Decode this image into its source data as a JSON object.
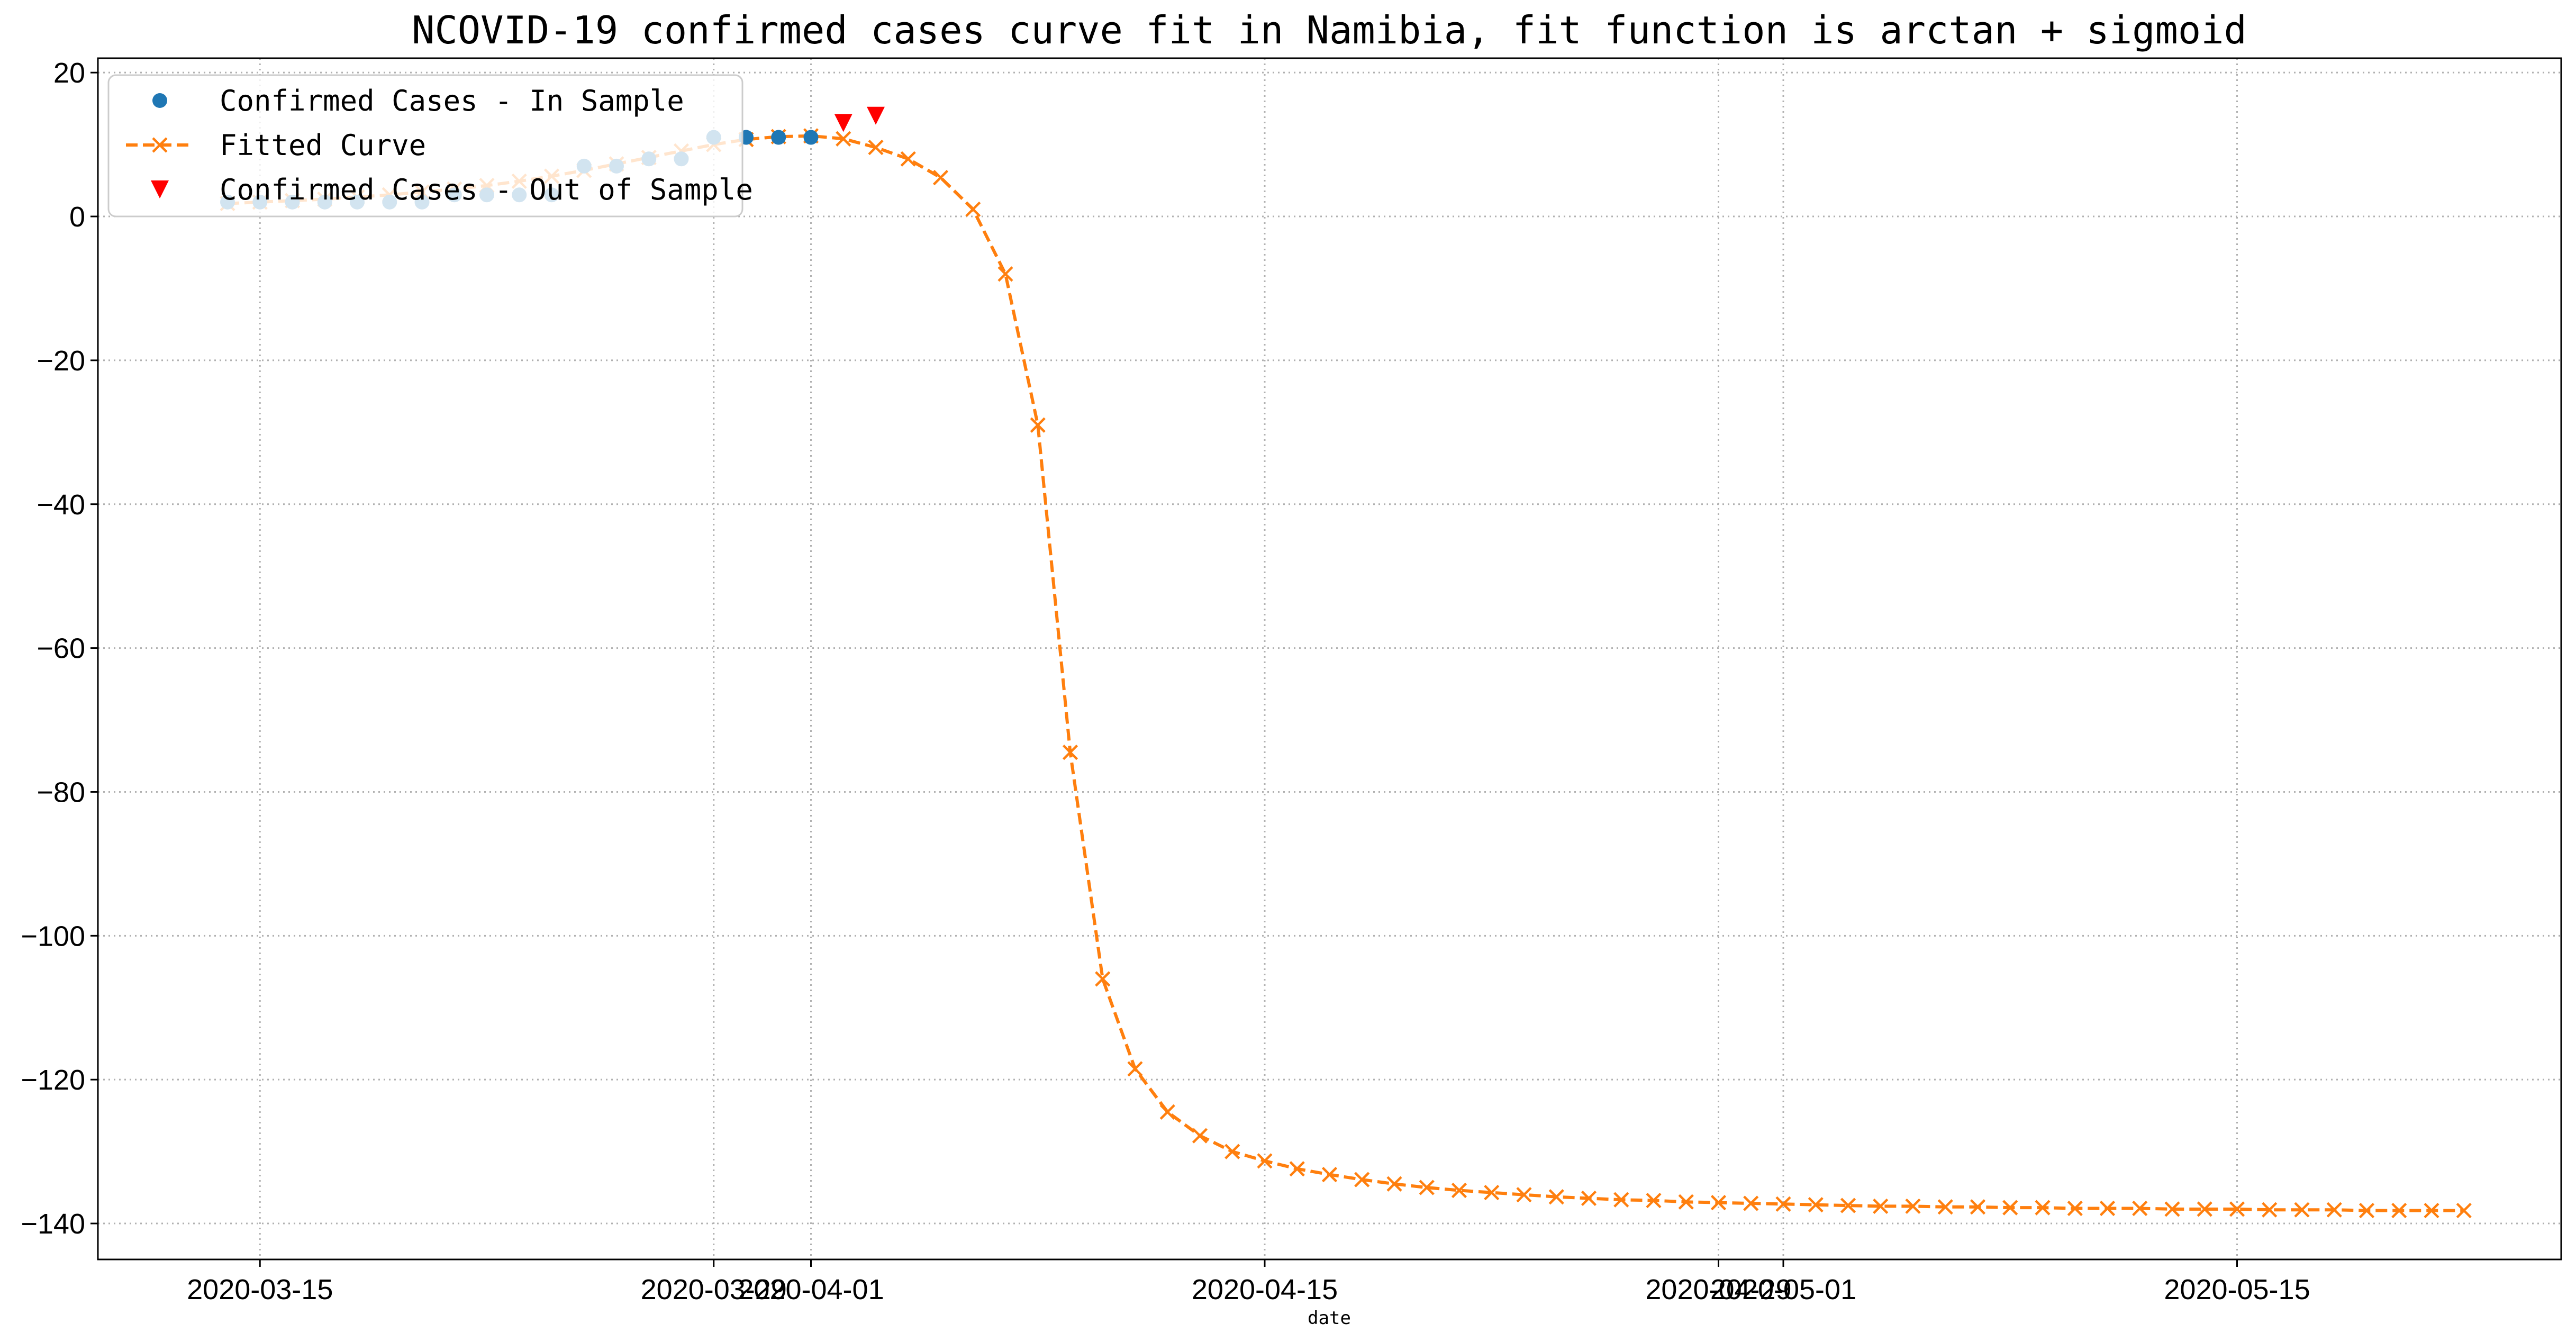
{
  "chart_data": {
    "type": "line",
    "title": "NCOVID-19 confirmed cases curve fit in Namibia, fit function is arctan + sigmoid",
    "xlabel": "date",
    "ylabel": "",
    "ylim": [
      -145,
      22
    ],
    "xlim": [
      "2020-03-10",
      "2020-05-25"
    ],
    "grid": true,
    "legend_position": "top-left",
    "x_ticks": [
      "2020-03-15",
      "2020-03-29",
      "2020-04-01",
      "2020-04-15",
      "2020-04-29",
      "2020-05-01",
      "2020-05-15"
    ],
    "y_ticks": [
      20,
      0,
      -20,
      -40,
      -60,
      -80,
      -100,
      -120,
      -140
    ],
    "series": [
      {
        "name": "Confirmed Cases - In Sample",
        "marker": "circle",
        "color": "#1f77b4",
        "x": [
          "2020-03-14",
          "2020-03-15",
          "2020-03-16",
          "2020-03-17",
          "2020-03-18",
          "2020-03-19",
          "2020-03-20",
          "2020-03-21",
          "2020-03-22",
          "2020-03-23",
          "2020-03-24",
          "2020-03-25",
          "2020-03-26",
          "2020-03-27",
          "2020-03-28",
          "2020-03-29",
          "2020-03-30",
          "2020-03-31",
          "2020-04-01"
        ],
        "y": [
          2,
          2,
          2,
          2,
          2,
          2,
          2,
          3,
          3,
          3,
          3,
          7,
          7,
          8,
          8,
          11,
          11,
          11,
          11
        ]
      },
      {
        "name": "Fitted Curve",
        "marker": "x",
        "line": "dashed",
        "color": "#ff7f0e",
        "x": [
          "2020-03-14",
          "2020-03-15",
          "2020-03-16",
          "2020-03-17",
          "2020-03-18",
          "2020-03-19",
          "2020-03-20",
          "2020-03-21",
          "2020-03-22",
          "2020-03-23",
          "2020-03-24",
          "2020-03-25",
          "2020-03-26",
          "2020-03-27",
          "2020-03-28",
          "2020-03-29",
          "2020-03-30",
          "2020-03-31",
          "2020-04-01",
          "2020-04-02",
          "2020-04-03",
          "2020-04-04",
          "2020-04-05",
          "2020-04-06",
          "2020-04-07",
          "2020-04-08",
          "2020-04-09",
          "2020-04-10",
          "2020-04-11",
          "2020-04-12",
          "2020-04-13",
          "2020-04-14",
          "2020-04-15",
          "2020-04-16",
          "2020-04-17",
          "2020-04-18",
          "2020-04-19",
          "2020-04-20",
          "2020-04-21",
          "2020-04-22",
          "2020-04-23",
          "2020-04-24",
          "2020-04-25",
          "2020-04-26",
          "2020-04-27",
          "2020-04-28",
          "2020-04-29",
          "2020-04-30",
          "2020-05-01",
          "2020-05-02",
          "2020-05-03",
          "2020-05-04",
          "2020-05-05",
          "2020-05-06",
          "2020-05-07",
          "2020-05-08",
          "2020-05-09",
          "2020-05-10",
          "2020-05-11",
          "2020-05-12",
          "2020-05-13",
          "2020-05-14",
          "2020-05-15",
          "2020-05-16",
          "2020-05-17",
          "2020-05-18",
          "2020-05-19",
          "2020-05-20",
          "2020-05-21",
          "2020-05-22"
        ],
        "y": [
          1.8,
          2.0,
          2.2,
          2.4,
          2.7,
          3.0,
          3.4,
          3.8,
          4.3,
          4.9,
          5.6,
          6.4,
          7.3,
          8.2,
          9.1,
          10.0,
          10.7,
          11.1,
          11.2,
          10.8,
          9.6,
          8.0,
          5.4,
          1.0,
          -8.0,
          -29.0,
          -74.5,
          -106.0,
          -118.5,
          -124.5,
          -127.8,
          -130.0,
          -131.3,
          -132.4,
          -133.2,
          -133.9,
          -134.5,
          -135.0,
          -135.4,
          -135.7,
          -136.0,
          -136.3,
          -136.5,
          -136.7,
          -136.8,
          -137.0,
          -137.1,
          -137.2,
          -137.3,
          -137.4,
          -137.5,
          -137.6,
          -137.6,
          -137.7,
          -137.7,
          -137.8,
          -137.8,
          -137.9,
          -137.9,
          -137.9,
          -138.0,
          -138.0,
          -138.0,
          -138.1,
          -138.1,
          -138.1,
          -138.2,
          -138.2,
          -138.2,
          -138.2
        ]
      },
      {
        "name": "Confirmed Cases - Out of Sample",
        "marker": "triangle-down",
        "color": "#ff0000",
        "x": [
          "2020-04-02",
          "2020-04-03"
        ],
        "y": [
          13,
          14
        ]
      }
    ]
  }
}
